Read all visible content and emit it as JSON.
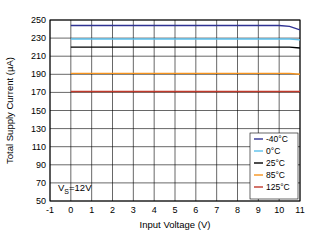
{
  "chart_data": {
    "type": "line",
    "x_label": "Input Voltage (V)",
    "y_label": "Total Supply Current (µA)",
    "annotation": {
      "base": "V",
      "sub": "S",
      "rest": "=12V"
    },
    "x": [
      0,
      1,
      2,
      3,
      4,
      5,
      6,
      7,
      8,
      9,
      10,
      10.5,
      11
    ],
    "series": [
      {
        "name": "-40°C",
        "color": "#2e3192",
        "values": [
          244,
          244,
          244,
          244,
          244,
          244,
          244,
          244,
          244,
          244,
          244,
          243,
          239
        ]
      },
      {
        "name": "0°C",
        "color": "#5bc0eb",
        "values": [
          229,
          229,
          229,
          229,
          229,
          229,
          229,
          229,
          229,
          229,
          229,
          229,
          228
        ]
      },
      {
        "name": "25°C",
        "color": "#000000",
        "values": [
          220,
          220,
          220,
          220,
          220,
          220,
          220,
          220,
          220,
          220,
          220,
          220,
          219
        ]
      },
      {
        "name": "85°C",
        "color": "#f7941d",
        "values": [
          191,
          191,
          191,
          191,
          191,
          191,
          191,
          191,
          191,
          191,
          191,
          191,
          190
        ]
      },
      {
        "name": "125°C",
        "color": "#c0392b",
        "values": [
          171,
          171,
          171,
          171,
          171,
          171,
          171,
          171,
          171,
          171,
          171,
          171,
          171
        ]
      }
    ],
    "xlim": [
      -1,
      11
    ],
    "xticks": [
      -1,
      0,
      1,
      2,
      3,
      4,
      5,
      6,
      7,
      8,
      9,
      10,
      11
    ],
    "ylim": [
      50,
      250
    ],
    "yticks": [
      50,
      70,
      90,
      110,
      130,
      150,
      170,
      190,
      210,
      230,
      250
    ],
    "grid": true,
    "legend": "bottom-right"
  }
}
